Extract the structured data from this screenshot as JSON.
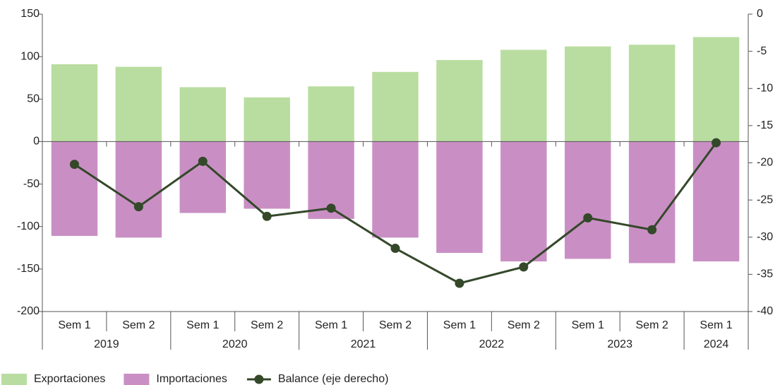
{
  "chart_data": {
    "type": "bar-line",
    "categories": [
      "Sem 1",
      "Sem 2",
      "Sem 1",
      "Sem 2",
      "Sem 1",
      "Sem 2",
      "Sem 1",
      "Sem 2",
      "Sem 1",
      "Sem 2",
      "Sem 1"
    ],
    "years": [
      "2019",
      null,
      "2020",
      null,
      "2021",
      null,
      "2022",
      null,
      "2023",
      null,
      "2024"
    ],
    "series": [
      {
        "name": "Exportaciones",
        "type": "bar",
        "color": "#b9dda0",
        "values": [
          91,
          88,
          64,
          52,
          65,
          82,
          96,
          108,
          112,
          114,
          123
        ]
      },
      {
        "name": "Importaciones",
        "type": "bar",
        "color": "#c98fc4",
        "values": [
          -111,
          -113,
          -84,
          -79,
          -91,
          -113,
          -131,
          -141,
          -138,
          -143,
          -141
        ]
      },
      {
        "name": "Balance (eje derecho)",
        "type": "line",
        "axis": "y2",
        "color": "#34482a",
        "values": [
          -20.2,
          -25.9,
          -19.8,
          -27.2,
          -26.1,
          -31.5,
          -36.2,
          -34.0,
          -27.4,
          -29.0,
          -17.3
        ]
      }
    ],
    "ylim": [
      -200,
      150
    ],
    "yticks": [
      -200,
      -150,
      -100,
      -50,
      0,
      50,
      100,
      150
    ],
    "y2lim": [
      -40,
      0
    ],
    "y2ticks": [
      -40,
      -35,
      -30,
      -25,
      -20,
      -15,
      -10,
      -5,
      0
    ],
    "legend": "bottom-left"
  }
}
